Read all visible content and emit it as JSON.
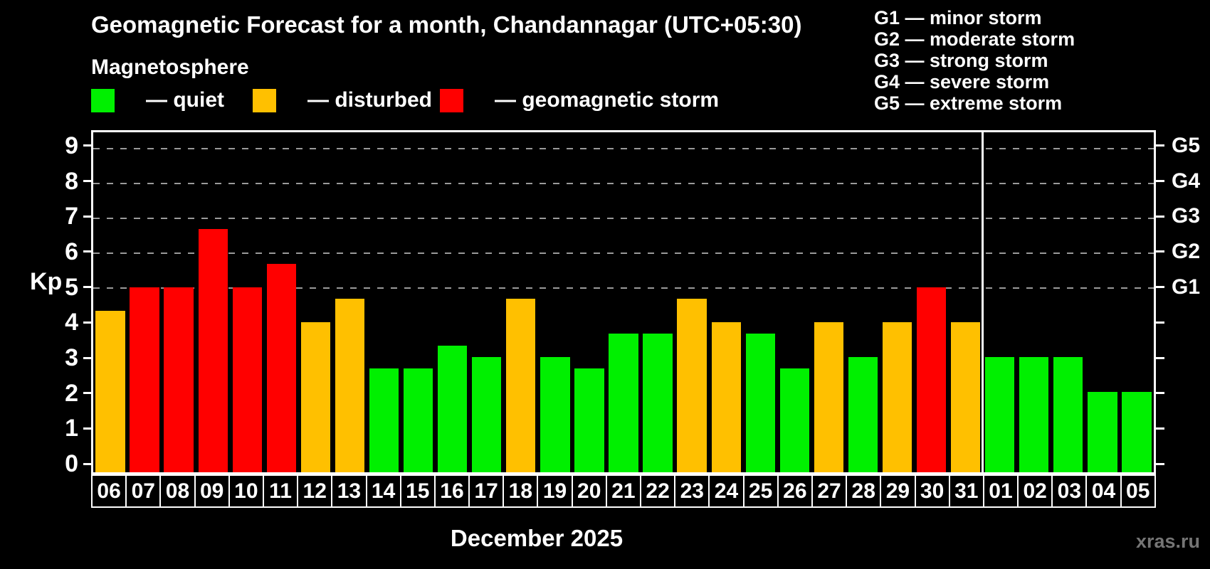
{
  "title": "Geomagnetic Forecast for a month, Chandannagar (UTC+05:30)",
  "subtitle": "Magnetosphere",
  "legend": {
    "items": [
      {
        "key": "quiet",
        "label": "— quiet",
        "color": "#00f000"
      },
      {
        "key": "disturbed",
        "label": "— disturbed",
        "color": "#ffc000"
      },
      {
        "key": "storm",
        "label": "— geomagnetic storm",
        "color": "#ff0000"
      }
    ]
  },
  "g_scale_legend": {
    "lines": [
      "G1 — minor storm",
      "G2 — moderate storm",
      "G3 — strong storm",
      "G4 — severe storm",
      "G5 — extreme storm"
    ]
  },
  "chart_data": {
    "type": "bar",
    "title": "Geomagnetic Forecast for a month, Chandannagar (UTC+05:30)",
    "ylabel": "Kp",
    "xlabel": "December 2025",
    "ylim": [
      0,
      9
    ],
    "grid": "horizontal dashed lines at Kp 5,6,7,8,9",
    "legend_position": "top-left",
    "categories": [
      "06",
      "07",
      "08",
      "09",
      "10",
      "11",
      "12",
      "13",
      "14",
      "15",
      "16",
      "17",
      "18",
      "19",
      "20",
      "21",
      "22",
      "23",
      "24",
      "25",
      "26",
      "27",
      "28",
      "29",
      "30",
      "31",
      "01",
      "02",
      "03",
      "04",
      "05"
    ],
    "values": [
      4.33,
      5,
      5,
      6.67,
      5,
      5.67,
      4,
      4.67,
      2.67,
      2.67,
      3.33,
      3,
      4.67,
      3,
      2.67,
      3.67,
      3.67,
      4.67,
      4,
      3.67,
      2.67,
      4,
      3,
      4,
      5,
      4,
      3,
      3,
      3,
      2,
      2
    ],
    "statuses": [
      "disturbed",
      "storm",
      "storm",
      "storm",
      "storm",
      "storm",
      "disturbed",
      "disturbed",
      "quiet",
      "quiet",
      "quiet",
      "quiet",
      "disturbed",
      "quiet",
      "quiet",
      "quiet",
      "quiet",
      "disturbed",
      "disturbed",
      "quiet",
      "quiet",
      "disturbed",
      "quiet",
      "disturbed",
      "storm",
      "disturbed",
      "quiet",
      "quiet",
      "quiet",
      "quiet",
      "quiet"
    ],
    "y_ticks": [
      0,
      1,
      2,
      3,
      4,
      5,
      6,
      7,
      8,
      9
    ],
    "gridline_values": [
      5,
      6,
      7,
      8,
      9
    ],
    "right_axis": [
      {
        "value": 5,
        "label": "G1"
      },
      {
        "value": 6,
        "label": "G2"
      },
      {
        "value": 7,
        "label": "G3"
      },
      {
        "value": 8,
        "label": "G4"
      },
      {
        "value": 9,
        "label": "G5"
      }
    ],
    "month_divider_index": 26
  },
  "watermark": "xras.ru"
}
